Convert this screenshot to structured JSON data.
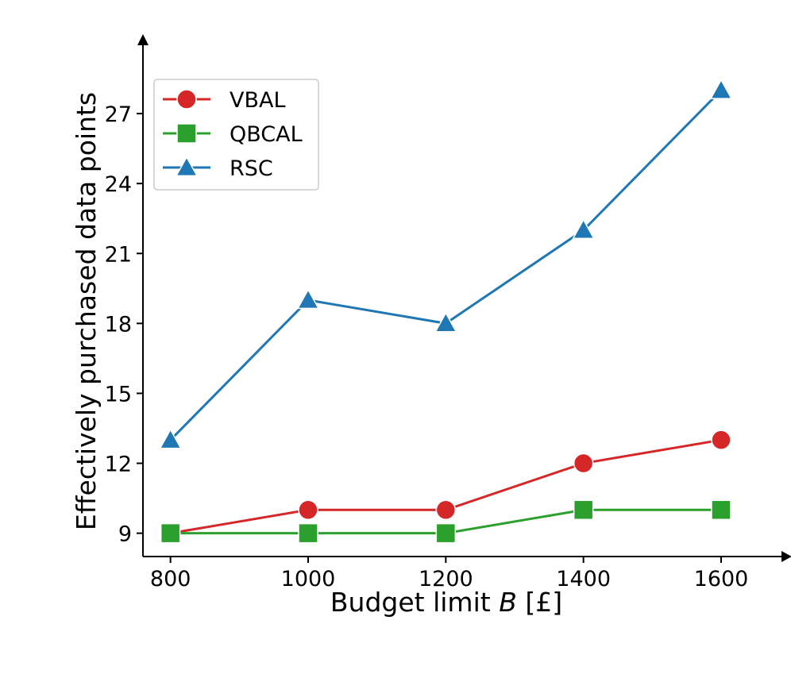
{
  "chart_data": {
    "type": "line",
    "title": "",
    "xlabel": "Budget limit",
    "xlabel_var": "B",
    "xlabel_unit": "[£]",
    "ylabel": "Effectively purchased data points",
    "x": [
      800,
      1000,
      1200,
      1400,
      1600
    ],
    "x_ticks": [
      "800",
      "1000",
      "1200",
      "1400",
      "1600"
    ],
    "y_ticks": [
      "9",
      "12",
      "15",
      "18",
      "21",
      "24",
      "27"
    ],
    "xlim": [
      760,
      1690
    ],
    "ylim": [
      8,
      30
    ],
    "legend_position": "top-left",
    "series": [
      {
        "name": "VBAL",
        "color": "#d62728",
        "marker": "circle",
        "values": [
          9,
          10,
          10,
          12,
          13
        ]
      },
      {
        "name": "QBCAL",
        "color": "#2ca02c",
        "marker": "square",
        "values": [
          9,
          9,
          9,
          10,
          10
        ]
      },
      {
        "name": "RSC",
        "color": "#1f77b4",
        "marker": "triangle",
        "values": [
          13,
          19,
          18,
          22,
          28
        ]
      }
    ]
  }
}
